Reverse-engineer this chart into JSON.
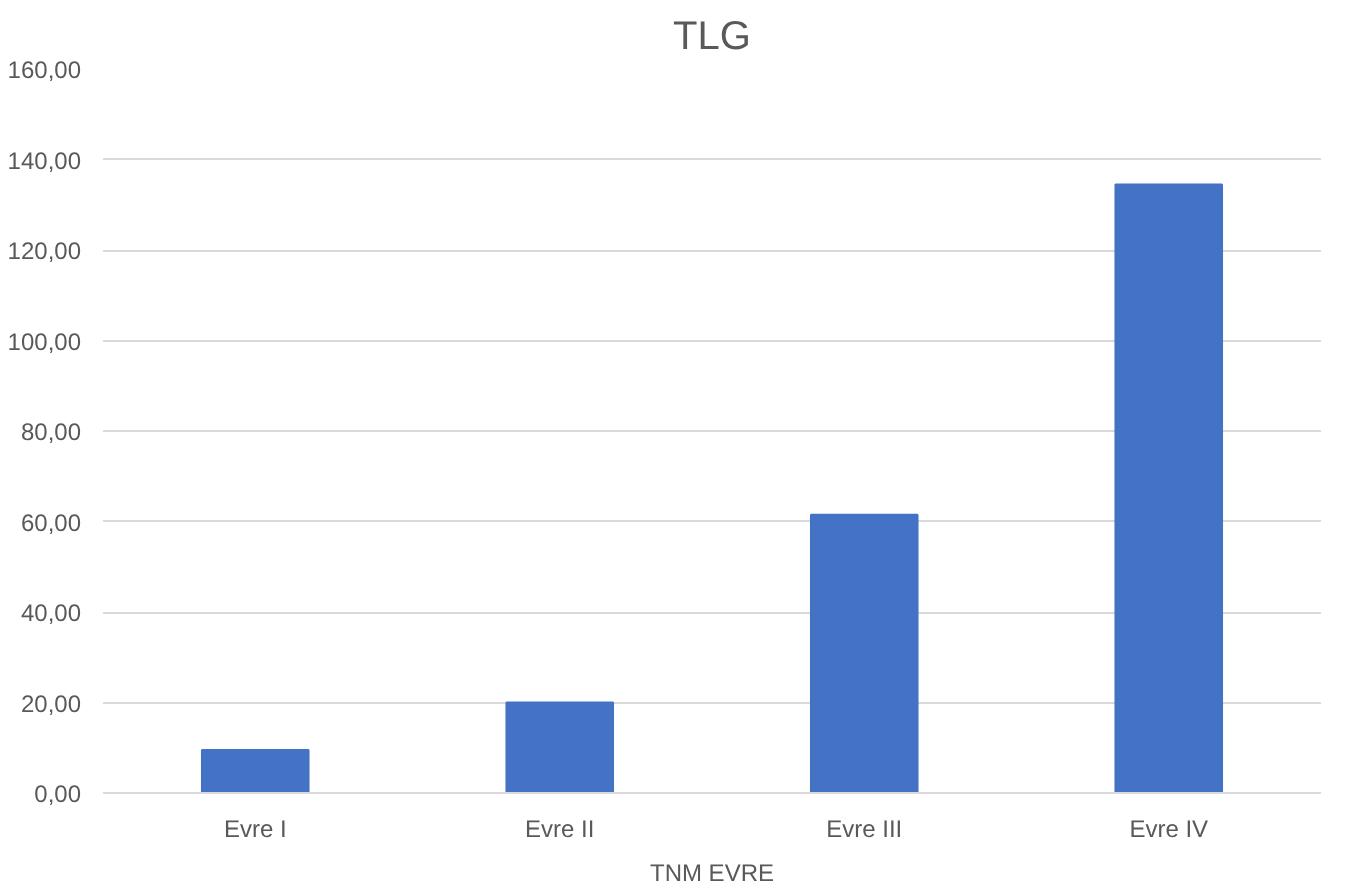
{
  "chart_data": {
    "type": "bar",
    "title": "TLG",
    "xlabel": "TNM EVRE",
    "categories": [
      "Evre I",
      "Evre II",
      "Evre III",
      "Evre IV"
    ],
    "values": [
      9.5,
      20,
      61.5,
      134.5
    ],
    "color": "#4472c4",
    "ylim": [
      0,
      160
    ],
    "yticks": [
      {
        "value": 0,
        "label": "0,00"
      },
      {
        "value": 20,
        "label": "20,00"
      },
      {
        "value": 40,
        "label": "40,00"
      },
      {
        "value": 60,
        "label": "60,00"
      },
      {
        "value": 80,
        "label": "80,00"
      },
      {
        "value": 100,
        "label": "100,00"
      },
      {
        "value": 120,
        "label": "120,00"
      },
      {
        "value": 140,
        "label": "140,00"
      },
      {
        "value": 160,
        "label": "160,00"
      }
    ],
    "grid": "y"
  }
}
